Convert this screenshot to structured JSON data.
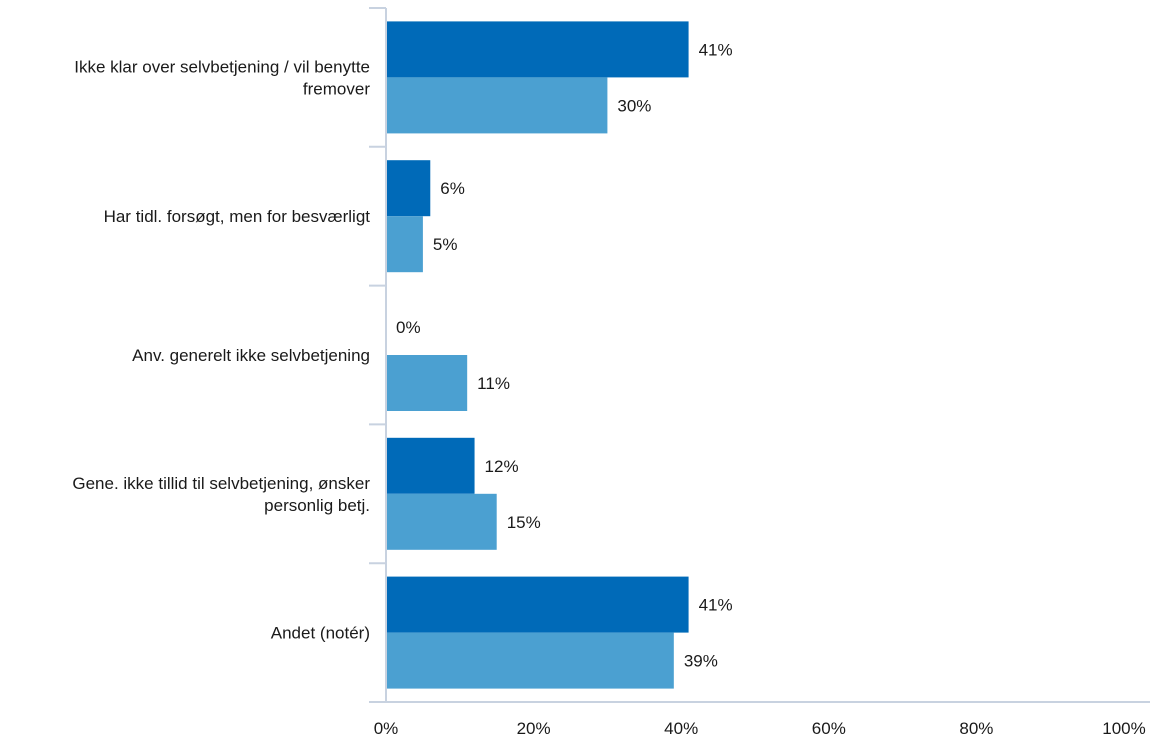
{
  "chart_data": {
    "type": "bar",
    "orientation": "horizontal",
    "title": "",
    "xlabel": "",
    "ylabel": "",
    "categories": [
      [
        "Ikke klar over selvbetjening / vil benytte",
        "fremover"
      ],
      [
        "Har tidl. forsøgt, men for besværligt"
      ],
      [
        "Anv. generelt ikke selvbetjening"
      ],
      [
        "Gene. ikke tillid til selvbetjening, ønsker",
        "personlig betj."
      ],
      [
        "Andet (notér)"
      ]
    ],
    "series": [
      {
        "color": "#006ab8",
        "values": [
          41,
          6,
          0,
          12,
          41
        ],
        "labels": [
          "41%",
          "6%",
          "0%",
          "12%",
          "41%"
        ]
      },
      {
        "color": "#4ba0d1",
        "values": [
          30,
          5,
          11,
          15,
          39
        ],
        "labels": [
          "30%",
          "5%",
          "11%",
          "15%",
          "39%"
        ]
      }
    ],
    "xlim": [
      0,
      100
    ],
    "xticks": [
      {
        "value": 0,
        "label": "0%"
      },
      {
        "value": 20,
        "label": "20%"
      },
      {
        "value": 40,
        "label": "40%"
      },
      {
        "value": 60,
        "label": "60%"
      },
      {
        "value": 80,
        "label": "80%"
      },
      {
        "value": 100,
        "label": "100%"
      }
    ],
    "grid": false,
    "legend": "none",
    "axis_color": "#c8d2e0"
  }
}
